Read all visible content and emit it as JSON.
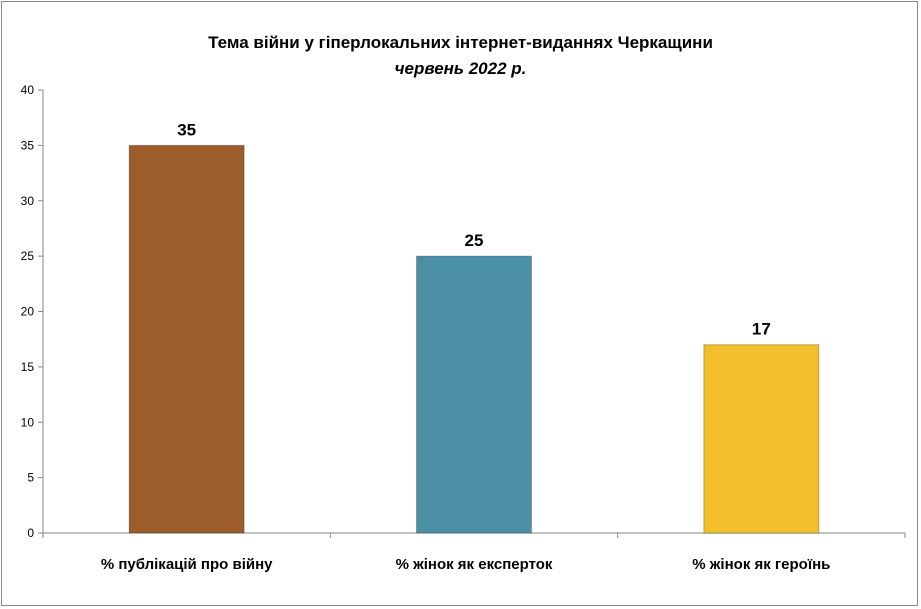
{
  "chart_data": {
    "type": "bar",
    "title": "Тема війни у гіперлокальних інтернет-виданнях Черкащини",
    "subtitle": "червень 2022 р.",
    "categories": [
      "% публікацій про війну",
      "% жінок як експерток",
      "% жінок як героїнь"
    ],
    "values": [
      35,
      25,
      17
    ],
    "colors": [
      "#9c5d2a",
      "#4a8fa3",
      "#f2bf2a"
    ],
    "ylim": [
      0,
      40
    ],
    "yticks": [
      0,
      5,
      10,
      15,
      20,
      25,
      30,
      35,
      40
    ],
    "grid": false,
    "legend": "none",
    "data_labels": true
  }
}
